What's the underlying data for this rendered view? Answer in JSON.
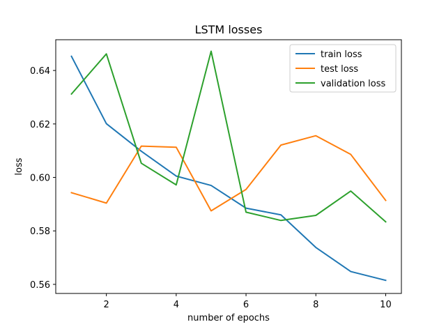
{
  "chart_data": {
    "type": "line",
    "title": "LSTM losses",
    "xlabel": "number of epochs",
    "ylabel": "loss",
    "x": [
      1,
      2,
      3,
      4,
      5,
      6,
      7,
      8,
      9,
      10
    ],
    "xlim": [
      0.55,
      10.45
    ],
    "ylim": [
      0.5566,
      0.6515
    ],
    "xticks": [
      2,
      4,
      6,
      8,
      10
    ],
    "yticks": [
      0.56,
      0.58,
      0.6,
      0.62,
      0.64
    ],
    "ytick_labels": [
      "0.56",
      "0.58",
      "0.60",
      "0.62",
      "0.64"
    ],
    "grid": false,
    "legend_position": "top-right",
    "series": [
      {
        "name": "train loss",
        "color": "#1f77b4",
        "values": [
          0.6453,
          0.6201,
          0.6098,
          0.6005,
          0.597,
          0.5885,
          0.586,
          0.5738,
          0.5648,
          0.5615
        ]
      },
      {
        "name": "test loss",
        "color": "#ff7f0e",
        "values": [
          0.5943,
          0.5904,
          0.6117,
          0.6113,
          0.5875,
          0.5955,
          0.6121,
          0.6156,
          0.6086,
          0.5914
        ]
      },
      {
        "name": "validation loss",
        "color": "#2ca02c",
        "values": [
          0.6312,
          0.6462,
          0.6053,
          0.5972,
          0.6472,
          0.587,
          0.5839,
          0.5858,
          0.5949,
          0.5834
        ]
      }
    ]
  }
}
